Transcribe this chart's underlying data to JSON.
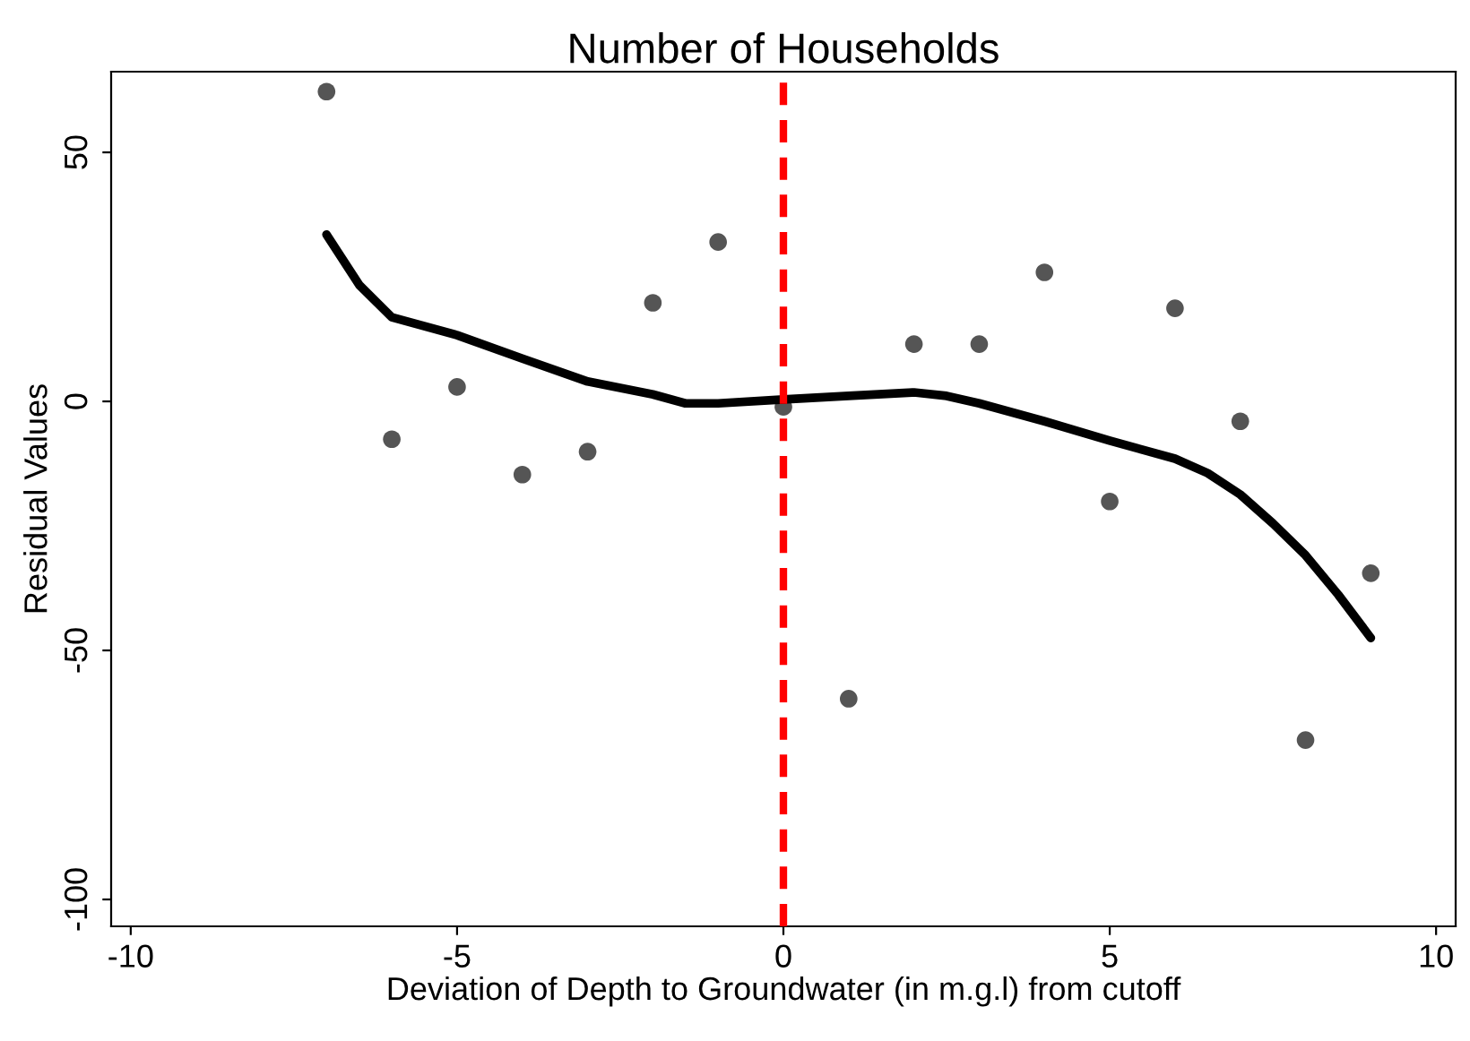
{
  "chart_data": {
    "type": "scatter",
    "title": "Number of Households",
    "xlabel": "Deviation of Depth to Groundwater (in m.g.l) from cutoff",
    "ylabel": "Residual Values",
    "xlim": [
      -10.3,
      10.3
    ],
    "ylim": [
      -105.4,
      66.2
    ],
    "xticks": [
      -10,
      -5,
      0,
      5,
      10
    ],
    "yticks": [
      -100,
      -50,
      0,
      50
    ],
    "grid": false,
    "legend": false,
    "series": [
      {
        "color": "#555555",
        "marker": "circle",
        "x": [
          -7,
          -6,
          -5,
          -4,
          -3,
          -2,
          -1,
          0,
          1,
          2,
          3,
          4,
          5,
          6,
          7,
          8,
          9
        ],
        "values": [
          62.2,
          -7.6,
          2.9,
          -14.7,
          -10.1,
          19.8,
          32,
          -1.1,
          -59.7,
          11.5,
          11.5,
          25.9,
          -20.1,
          18.7,
          -4,
          -68,
          -34.5
        ]
      },
      {
        "type": "line",
        "color": "#000000",
        "marker": "none",
        "line_style": "solid",
        "x": [
          -7,
          -6.5,
          -6,
          -5,
          -4,
          -3,
          -2,
          -1.5,
          -1,
          0,
          1,
          2,
          2.5,
          3,
          4,
          5,
          6,
          6.5,
          7,
          7.5,
          8,
          8.5,
          9
        ],
        "values": [
          33.5,
          23.4,
          16.9,
          13.3,
          8.6,
          4,
          1.4,
          -0.4,
          -0.4,
          0.4,
          1.1,
          1.8,
          1.1,
          -0.4,
          -4,
          -7.9,
          -11.5,
          -14.4,
          -18.7,
          -24.5,
          -30.9,
          -38.8,
          -47.5
        ]
      }
    ],
    "ref_lines": [
      {
        "axis": "x",
        "value": 0,
        "color": "#ff0000",
        "line_style": "dashed"
      }
    ]
  }
}
